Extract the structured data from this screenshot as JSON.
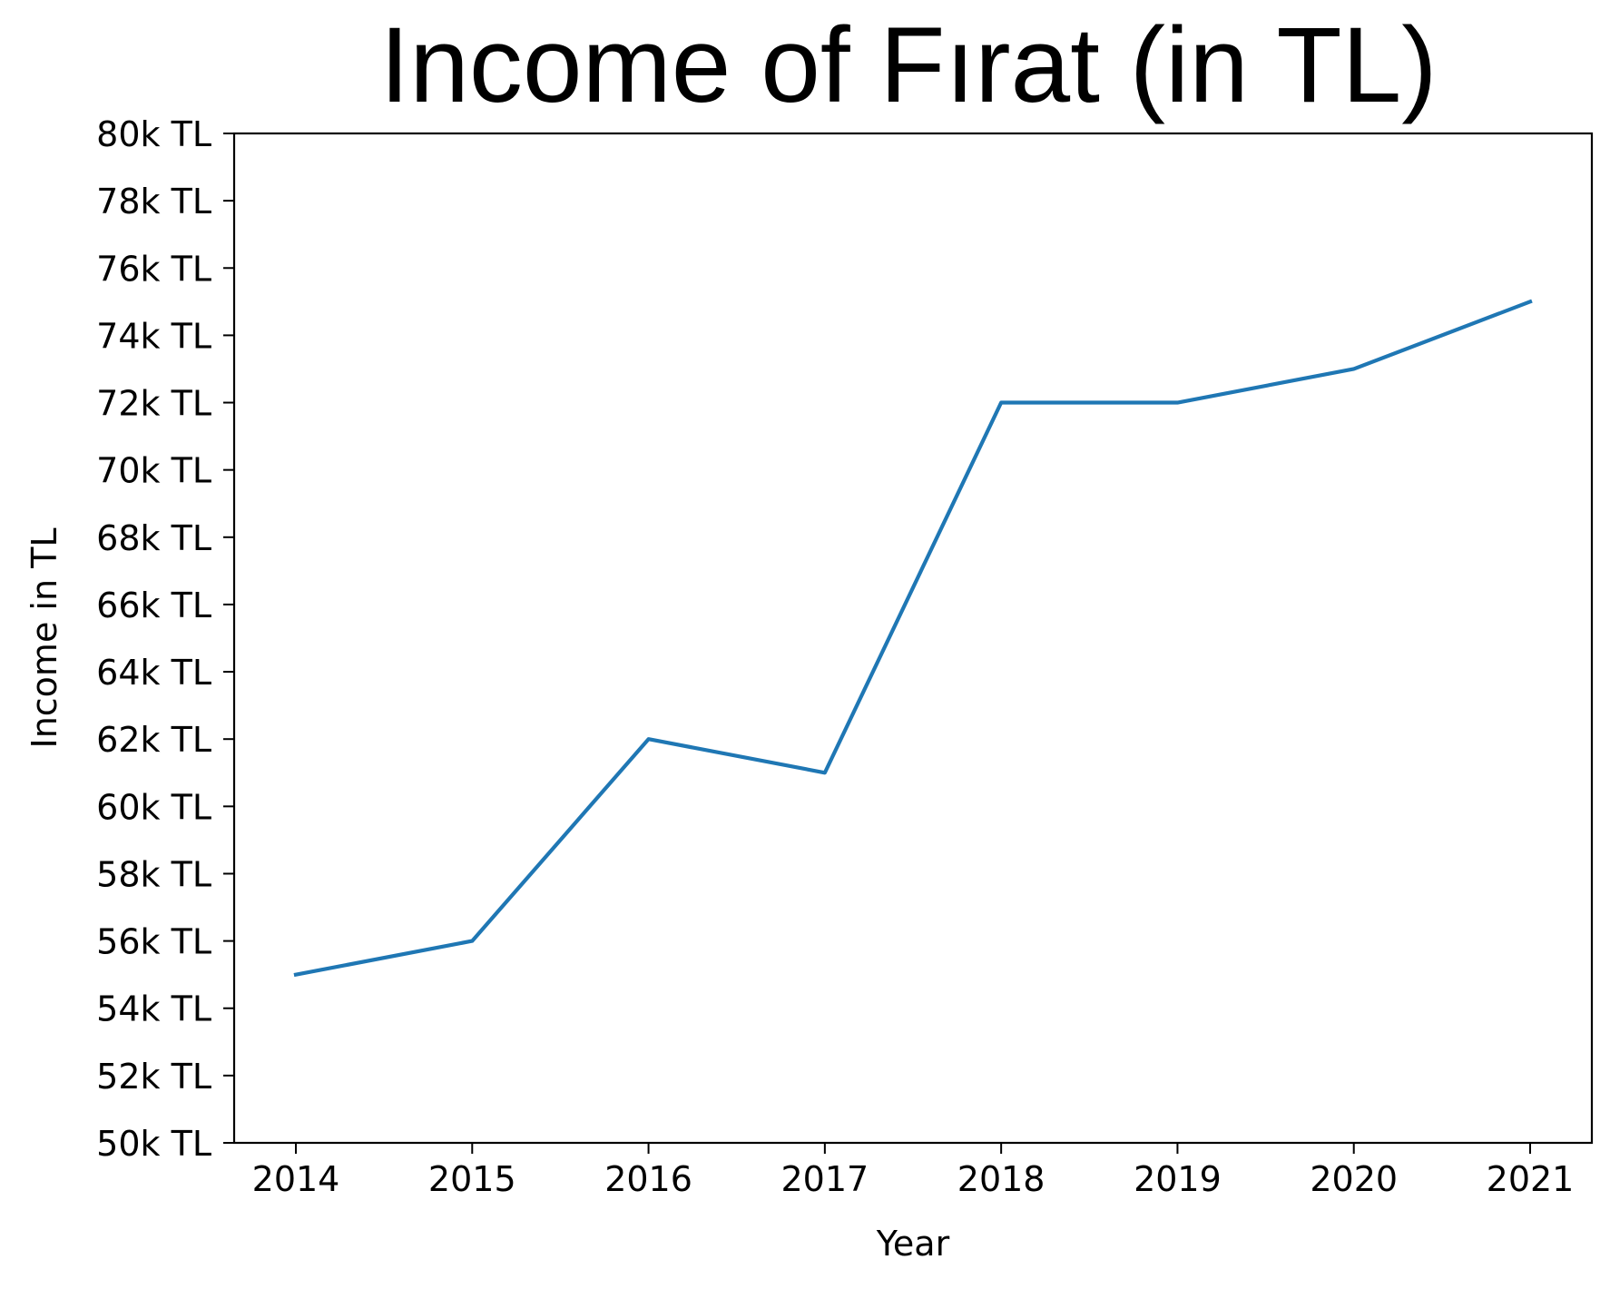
{
  "chart_data": {
    "type": "line",
    "title": "Income of Fırat (in TL)",
    "xlabel": "Year",
    "ylabel": "Income in TL",
    "x": [
      2014,
      2015,
      2016,
      2017,
      2018,
      2019,
      2020,
      2021
    ],
    "x_tick_labels": [
      "2014",
      "2015",
      "2016",
      "2017",
      "2018",
      "2019",
      "2020",
      "2021"
    ],
    "series": [
      {
        "values": [
          55000,
          56000,
          62000,
          61000,
          72000,
          72000,
          73000,
          75000
        ],
        "color": "#1f77b4"
      }
    ],
    "ylim": [
      50000,
      80000
    ],
    "xlim": [
      2013.65,
      2021.35
    ],
    "y_ticks": [
      50000,
      52000,
      54000,
      56000,
      58000,
      60000,
      62000,
      64000,
      66000,
      68000,
      70000,
      72000,
      74000,
      76000,
      78000,
      80000
    ],
    "y_tick_labels": [
      "50k TL",
      "52k TL",
      "54k TL",
      "56k TL",
      "58k TL",
      "60k TL",
      "62k TL",
      "64k TL",
      "66k TL",
      "68k TL",
      "70k TL",
      "72k TL",
      "74k TL",
      "76k TL",
      "78k TL",
      "80k TL"
    ],
    "grid": false,
    "legend": "none"
  }
}
